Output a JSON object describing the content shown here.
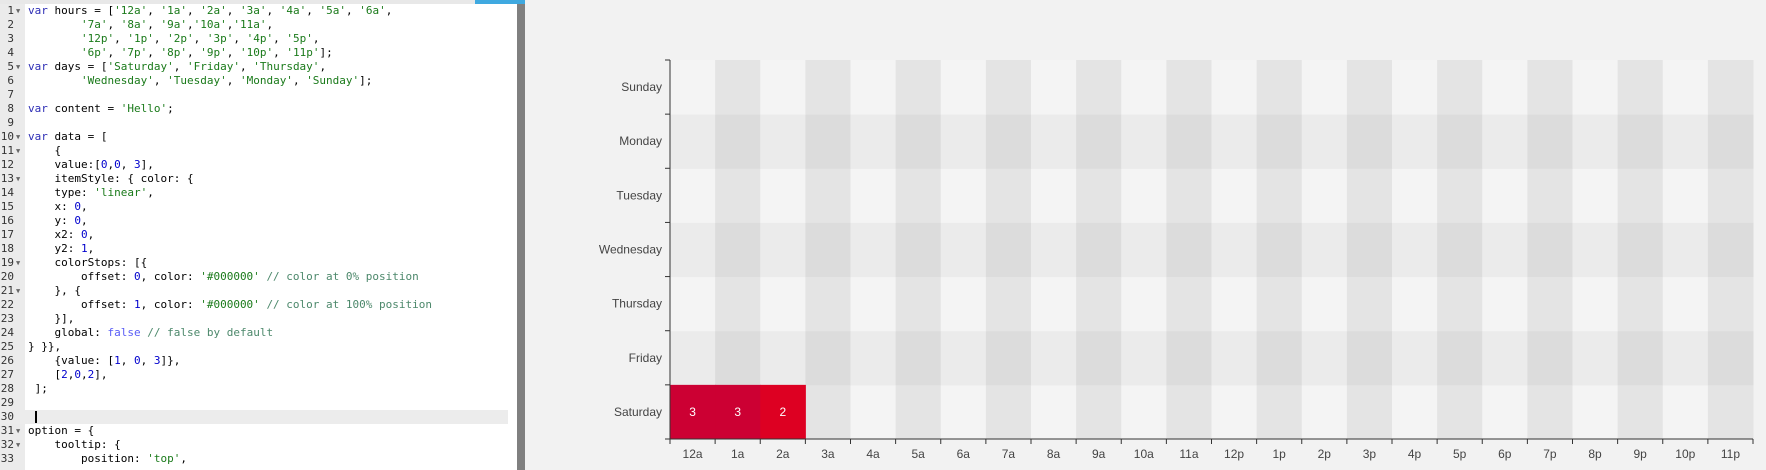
{
  "editor": {
    "active_line": 30,
    "fold_lines": [
      1,
      5,
      10,
      11,
      13,
      19,
      21,
      31,
      32
    ],
    "lines": [
      "var hours = ['12a', '1a', '2a', '3a', '4a', '5a', '6a',",
      "        '7a', '8a', '9a','10a','11a',",
      "        '12p', '1p', '2p', '3p', '4p', '5p',",
      "        '6p', '7p', '8p', '9p', '10p', '11p'];",
      "var days = ['Saturday', 'Friday', 'Thursday',",
      "        'Wednesday', 'Tuesday', 'Monday', 'Sunday'];",
      "",
      "var content = 'Hello';",
      "",
      "var data = [",
      "    {",
      "    value:[0,0, 3],",
      "    itemStyle: { color: {",
      "    type: 'linear',",
      "    x: 0,",
      "    y: 0,",
      "    x2: 0,",
      "    y2: 1,",
      "    colorStops: [{",
      "        offset: 0, color: '#000000' // color at 0% position",
      "    }, {",
      "        offset: 1, color: '#000000' // color at 100% position",
      "    }],",
      "    global: false // false by default",
      "} }},",
      "    {value: [1, 0, 3]},",
      "    [2,0,2],",
      " ];",
      "",
      "",
      "option = {",
      "    tooltip: {",
      "        position: 'top',"
    ]
  },
  "chart_data": {
    "type": "heatmap",
    "x_categories": [
      "12a",
      "1a",
      "2a",
      "3a",
      "4a",
      "5a",
      "6a",
      "7a",
      "8a",
      "9a",
      "10a",
      "11a",
      "12p",
      "1p",
      "2p",
      "3p",
      "4p",
      "5p",
      "6p",
      "7p",
      "8p",
      "9p",
      "10p",
      "11p"
    ],
    "y_categories": [
      "Saturday",
      "Friday",
      "Thursday",
      "Wednesday",
      "Tuesday",
      "Monday",
      "Sunday"
    ],
    "data": [
      [
        0,
        0,
        3
      ],
      [
        1,
        0,
        3
      ],
      [
        2,
        0,
        2
      ]
    ],
    "cell_colors": {
      "3": "#cc0033",
      "2": "#dd0022"
    },
    "label_color": "#ffffff",
    "split_area": true,
    "background": "#f2f2f2"
  }
}
